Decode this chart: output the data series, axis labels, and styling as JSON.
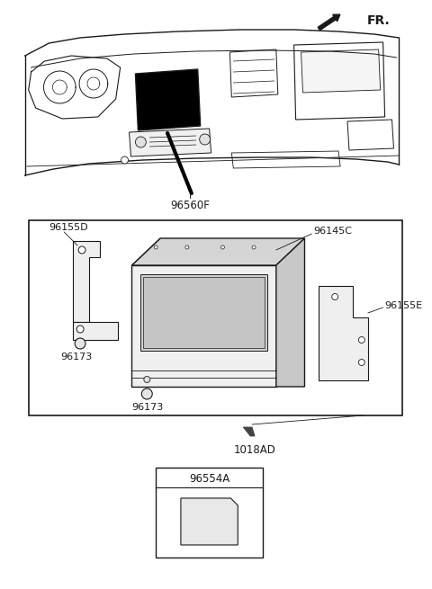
{
  "bg_color": "#ffffff",
  "line_color": "#1a1a1a",
  "text_color": "#1a1a1a",
  "fr_label": "FR.",
  "label_96560F": "96560F",
  "label_96155D": "96155D",
  "label_96145C": "96145C",
  "label_96155E": "96155E",
  "label_96173_1": "96173",
  "label_96173_2": "96173",
  "label_1018AD": "1018AD",
  "label_96554A": "96554A",
  "font_size_label": 7.5,
  "font_size_fr": 10
}
